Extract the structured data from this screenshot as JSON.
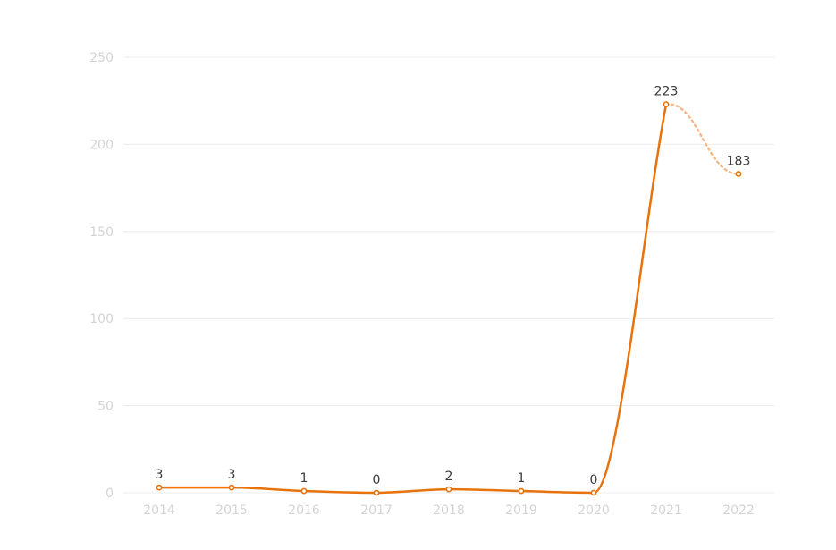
{
  "chart_data": {
    "type": "line",
    "title": "",
    "xlabel": "",
    "ylabel": "",
    "categories": [
      "2014",
      "2015",
      "2016",
      "2017",
      "2018",
      "2019",
      "2020",
      "2021",
      "2022"
    ],
    "series": [
      {
        "values": [
          3,
          3,
          1,
          0,
          2,
          1,
          0,
          223,
          183
        ],
        "color": "#e8720c",
        "projected_from_index": 7
      }
    ],
    "ylim": [
      0,
      250
    ],
    "yticks": [
      0,
      50,
      100,
      150,
      200,
      250
    ],
    "grid": true,
    "legend": "none",
    "projection_color": "#f7b98a"
  }
}
